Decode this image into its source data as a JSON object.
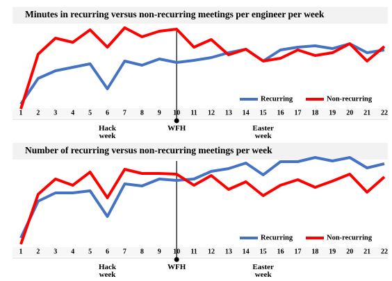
{
  "chart_data": [
    {
      "type": "line",
      "title": "Minutes in recurring versus non-recurring meetings per engineer per week",
      "categories": [
        "1",
        "2",
        "3",
        "4",
        "5",
        "6",
        "7",
        "8",
        "9",
        "10",
        "11",
        "12",
        "13",
        "14",
        "15",
        "16",
        "17",
        "18",
        "19",
        "20",
        "21",
        "22"
      ],
      "series": [
        {
          "name": "Recurring",
          "color": "#4472c4",
          "values": [
            10,
            47,
            58,
            63,
            68,
            32,
            72,
            66,
            75,
            70,
            73,
            77,
            84,
            89,
            72,
            88,
            92,
            94,
            90,
            97,
            84,
            88
          ]
        },
        {
          "name": "Non-recurring",
          "color": "#ff0000",
          "values": [
            3,
            82,
            105,
            99,
            117,
            92,
            120,
            107,
            115,
            118,
            92,
            103,
            81,
            89,
            72,
            76,
            88,
            80,
            84,
            97,
            72,
            93
          ]
        }
      ],
      "ylim": [
        0,
        130
      ],
      "annotations": [
        {
          "text": "Hack week",
          "category": "6"
        },
        {
          "text": "WFH",
          "category": "10",
          "marker": true
        },
        {
          "text": "Easter week",
          "category": "15"
        }
      ]
    },
    {
      "type": "line",
      "title": "Number of recurring versus non-recurring meetings per week",
      "categories": [
        "1",
        "2",
        "3",
        "4",
        "5",
        "6",
        "7",
        "8",
        "9",
        "10",
        "11",
        "12",
        "13",
        "14",
        "15",
        "16",
        "17",
        "18",
        "19",
        "20",
        "21",
        "22"
      ],
      "series": [
        {
          "name": "Recurring",
          "color": "#4472c4",
          "values": [
            17,
            70,
            82,
            82,
            85,
            48,
            95,
            92,
            102,
            100,
            102,
            113,
            117,
            125,
            108,
            127,
            127,
            133,
            128,
            133,
            118,
            124
          ]
        },
        {
          "name": "Non-recurring",
          "color": "#ff0000",
          "values": [
            8,
            80,
            102,
            93,
            112,
            75,
            116,
            110,
            110,
            109,
            93,
            107,
            87,
            98,
            78,
            93,
            101,
            90,
            99,
            109,
            83,
            105
          ]
        }
      ],
      "ylim": [
        0,
        140
      ],
      "annotations": [
        {
          "text": "Hack week",
          "category": "6"
        },
        {
          "text": "WFH",
          "category": "10",
          "marker": true
        },
        {
          "text": "Easter week",
          "category": "15"
        }
      ]
    }
  ]
}
